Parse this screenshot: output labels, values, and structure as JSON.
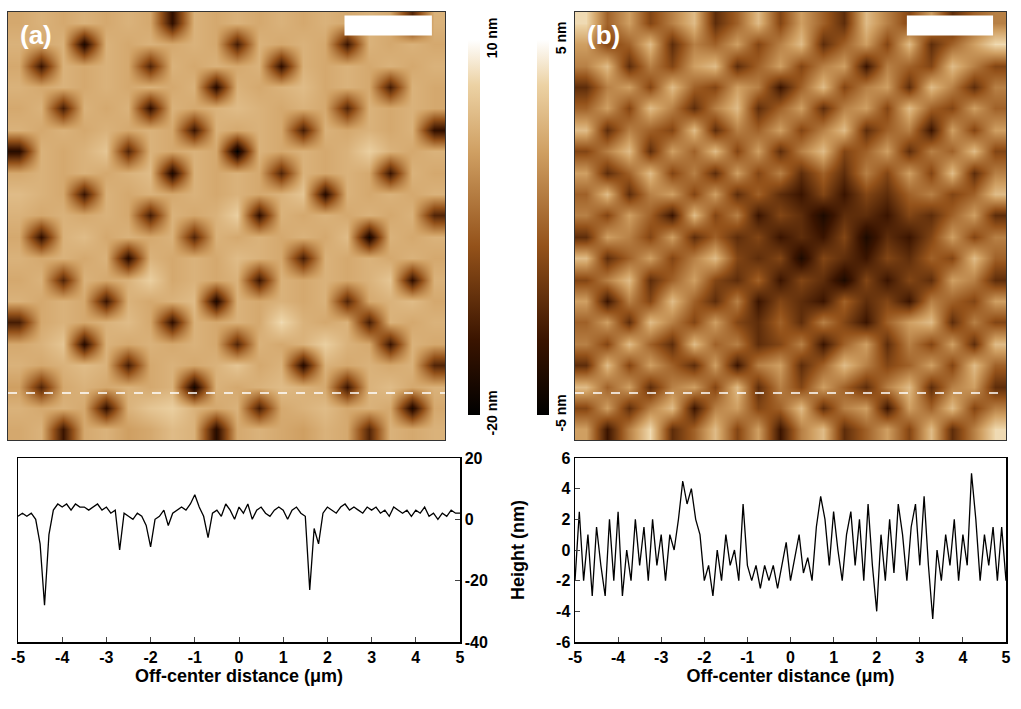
{
  "chart_data": [
    {
      "type": "heatmap",
      "panel": "(a)",
      "x": [
        -4.75,
        -4.25,
        -3.75,
        -3.25,
        -2.75,
        -2.25,
        -1.75,
        -1.25,
        -0.75,
        -0.25,
        0.25,
        0.75,
        1.25,
        1.75,
        2.25,
        2.75,
        3.25,
        3.75,
        4.25,
        4.75
      ],
      "y": [
        -4.75,
        -4.25,
        -3.75,
        -3.25,
        -2.75,
        -2.25,
        -1.75,
        -1.25,
        -0.75,
        -0.25,
        0.25,
        0.75,
        1.25,
        1.75,
        2.25,
        2.75,
        3.25,
        3.75,
        4.25,
        4.75
      ],
      "z": [
        [
          2,
          3,
          -14,
          2,
          3,
          1,
          2,
          4,
          3,
          -16,
          2,
          3,
          2,
          1,
          3,
          2,
          -12,
          3,
          2,
          3
        ],
        [
          3,
          2,
          3,
          2,
          -15,
          3,
          5,
          6,
          3,
          2,
          3,
          -13,
          2,
          3,
          4,
          2,
          3,
          2,
          -17,
          2
        ],
        [
          1,
          -12,
          2,
          3,
          2,
          3,
          2,
          3,
          -18,
          3,
          2,
          3,
          4,
          3,
          2,
          -14,
          3,
          4,
          2,
          3
        ],
        [
          3,
          2,
          3,
          4,
          3,
          -13,
          2,
          3,
          2,
          3,
          5,
          2,
          3,
          -16,
          3,
          2,
          3,
          2,
          3,
          -12
        ],
        [
          2,
          3,
          5,
          -16,
          3,
          2,
          3,
          2,
          3,
          2,
          -12,
          3,
          2,
          3,
          6,
          3,
          2,
          -14,
          3,
          2
        ],
        [
          -13,
          2,
          3,
          2,
          3,
          4,
          2,
          -15,
          3,
          2,
          3,
          2,
          7,
          3,
          2,
          3,
          -13,
          3,
          2,
          3
        ],
        [
          3,
          2,
          3,
          2,
          -14,
          3,
          2,
          3,
          4,
          -17,
          3,
          2,
          3,
          2,
          3,
          -12,
          2,
          3,
          4,
          2
        ],
        [
          2,
          3,
          -12,
          3,
          2,
          3,
          6,
          2,
          3,
          2,
          3,
          -14,
          3,
          2,
          3,
          2,
          3,
          5,
          -15,
          3
        ],
        [
          3,
          2,
          3,
          2,
          3,
          -16,
          3,
          2,
          3,
          2,
          4,
          3,
          2,
          -13,
          3,
          2,
          3,
          2,
          3,
          2
        ],
        [
          2,
          -15,
          3,
          4,
          2,
          3,
          2,
          3,
          -12,
          3,
          2,
          3,
          2,
          3,
          2,
          4,
          -18,
          3,
          2,
          3
        ],
        [
          3,
          2,
          3,
          2,
          3,
          2,
          -13,
          3,
          2,
          3,
          6,
          -15,
          3,
          2,
          3,
          2,
          3,
          2,
          3,
          -12
        ],
        [
          4,
          3,
          2,
          -14,
          3,
          2,
          3,
          2,
          3,
          2,
          3,
          2,
          3,
          5,
          -16,
          3,
          2,
          3,
          2,
          3
        ],
        [
          2,
          3,
          2,
          3,
          2,
          3,
          4,
          -17,
          3,
          2,
          3,
          2,
          -12,
          3,
          2,
          3,
          2,
          -14,
          3,
          2
        ],
        [
          -16,
          3,
          2,
          3,
          5,
          -12,
          3,
          2,
          3,
          2,
          -20,
          3,
          2,
          3,
          2,
          3,
          6,
          3,
          2,
          3
        ],
        [
          3,
          2,
          3,
          2,
          3,
          2,
          3,
          2,
          -14,
          3,
          2,
          3,
          2,
          -13,
          3,
          2,
          3,
          2,
          3,
          -15
        ],
        [
          2,
          3,
          -13,
          3,
          2,
          3,
          -15,
          3,
          2,
          3,
          4,
          3,
          2,
          3,
          2,
          -12,
          3,
          2,
          3,
          2
        ],
        [
          3,
          2,
          3,
          2,
          3,
          2,
          3,
          2,
          3,
          -16,
          3,
          2,
          3,
          4,
          2,
          3,
          2,
          -13,
          3,
          2
        ],
        [
          2,
          -14,
          3,
          2,
          3,
          2,
          -12,
          3,
          2,
          3,
          2,
          3,
          -15,
          3,
          2,
          3,
          2,
          3,
          2,
          3
        ],
        [
          3,
          2,
          3,
          -17,
          3,
          2,
          3,
          2,
          3,
          2,
          -13,
          3,
          2,
          3,
          2,
          -14,
          3,
          2,
          3,
          2
        ],
        [
          2,
          3,
          2,
          3,
          2,
          3,
          2,
          -15,
          3,
          2,
          3,
          2,
          3,
          2,
          3,
          2,
          3,
          2,
          -12,
          3
        ]
      ],
      "xlim": [
        -5,
        5
      ],
      "ylim": [
        -5,
        5
      ],
      "tick_labels": false,
      "colorbar": {
        "range": [
          -20,
          10
        ],
        "ticks": [
          {
            "value": 10,
            "label": "10 nm"
          },
          {
            "value": -20,
            "label": "-20 nm"
          }
        ]
      },
      "profile_y": -3.9,
      "scale_bar": 2
    },
    {
      "type": "line",
      "x_label": "Off-center distance (μm)",
      "color": "#000000",
      "x": [
        -5,
        -4.9,
        -4.8,
        -4.7,
        -4.6,
        -4.5,
        -4.4,
        -4.3,
        -4.2,
        -4.1,
        -4,
        -3.9,
        -3.8,
        -3.7,
        -3.6,
        -3.5,
        -3.4,
        -3.3,
        -3.2,
        -3.1,
        -3,
        -2.9,
        -2.8,
        -2.7,
        -2.6,
        -2.5,
        -2.4,
        -2.3,
        -2.2,
        -2.1,
        -2,
        -1.9,
        -1.8,
        -1.7,
        -1.6,
        -1.5,
        -1.4,
        -1.3,
        -1.2,
        -1.1,
        -1,
        -0.9,
        -0.8,
        -0.7,
        -0.6,
        -0.5,
        -0.4,
        -0.3,
        -0.2,
        -0.1,
        0,
        0.1,
        0.2,
        0.3,
        0.4,
        0.5,
        0.6,
        0.7,
        0.8,
        0.9,
        1,
        1.1,
        1.2,
        1.3,
        1.4,
        1.5,
        1.6,
        1.7,
        1.8,
        1.9,
        2,
        2.1,
        2.2,
        2.3,
        2.4,
        2.5,
        2.6,
        2.7,
        2.8,
        2.9,
        3,
        3.1,
        3.2,
        3.3,
        3.4,
        3.5,
        3.6,
        3.7,
        3.8,
        3.9,
        4,
        4.1,
        4.2,
        4.3,
        4.4,
        4.5,
        4.6,
        4.7,
        4.8,
        4.9,
        5
      ],
      "values": [
        1,
        2,
        1,
        2,
        0,
        -8,
        -28,
        -5,
        3,
        5,
        4,
        5,
        3,
        5,
        4,
        4,
        3,
        4,
        5,
        3,
        4,
        2,
        3,
        -10,
        2,
        1,
        0,
        2,
        1,
        -2,
        -9,
        0,
        1,
        3,
        -2,
        2,
        3,
        4,
        3,
        5,
        8,
        4,
        1,
        -6,
        2,
        3,
        1,
        5,
        3,
        0,
        4,
        2,
        5,
        0,
        3,
        4,
        2,
        1,
        3,
        4,
        3,
        0,
        3,
        4,
        2,
        1,
        -23,
        -3,
        -8,
        2,
        4,
        3,
        2,
        4,
        5,
        3,
        4,
        3,
        2,
        4,
        3,
        4,
        2,
        3,
        1,
        4,
        3,
        2,
        3,
        1,
        3,
        2,
        4,
        1,
        2,
        0,
        2,
        1,
        3,
        2,
        2
      ],
      "xlim": [
        -5,
        5
      ],
      "xticks": [
        -5,
        -4,
        -3,
        -2,
        -1,
        0,
        1,
        2,
        3,
        4,
        5
      ],
      "ylim": [
        -40,
        20
      ],
      "yticks": [
        -40,
        -20,
        0,
        20
      ]
    },
    {
      "type": "heatmap",
      "panel": "(b)",
      "x": [
        -4.75,
        -4.25,
        -3.75,
        -3.25,
        -2.75,
        -2.25,
        -1.75,
        -1.25,
        -0.75,
        -0.25,
        0.25,
        0.75,
        1.25,
        1.75,
        2.25,
        2.75,
        3.25,
        3.75,
        4.25,
        4.75
      ],
      "y": [
        -4.75,
        -4.25,
        -3.75,
        -3.25,
        -2.75,
        -2.25,
        -1.75,
        -1.25,
        -0.75,
        -0.25,
        0.25,
        0.75,
        1.25,
        1.75,
        2.25,
        2.75,
        3.25,
        3.75,
        4.25,
        4.75
      ],
      "z": [
        [
          2,
          -3,
          1,
          4,
          -2,
          0,
          3,
          -1,
          2,
          -3,
          1,
          3,
          -2,
          0,
          2,
          -1,
          3,
          -2,
          1,
          4
        ],
        [
          -1,
          2,
          -2,
          1,
          3,
          -3,
          1,
          2,
          -1,
          0,
          3,
          -2,
          1,
          2,
          -3,
          2,
          0,
          3,
          -1,
          1
        ],
        [
          3,
          0,
          2,
          -2,
          1,
          2,
          -1,
          3,
          -2,
          1,
          -1,
          2,
          0,
          -2,
          1,
          3,
          -2,
          1,
          2,
          -2
        ],
        [
          -2,
          3,
          -1,
          2,
          0,
          -2,
          2,
          -3,
          1,
          2,
          -2,
          0,
          3,
          1,
          -1,
          0,
          2,
          -1,
          3,
          0
        ],
        [
          1,
          -1,
          3,
          0,
          -2,
          3,
          0,
          1,
          -2,
          -1,
          1,
          -3,
          0,
          2,
          -2,
          1,
          -1,
          2,
          -2,
          3
        ],
        [
          0,
          2,
          -2,
          3,
          1,
          -1,
          2,
          -1,
          -2,
          0,
          -2,
          1,
          -1,
          -3,
          0,
          2,
          3,
          -2,
          1,
          -1
        ],
        [
          2,
          -3,
          1,
          -1,
          3,
          0,
          -2,
          1,
          -3,
          -1,
          -2,
          -3,
          0,
          -2,
          -1,
          -3,
          1,
          0,
          -1,
          2
        ],
        [
          -1,
          1,
          3,
          -2,
          0,
          2,
          -1,
          -2,
          0,
          -3,
          -1,
          -2,
          -4,
          -1,
          -3,
          -1,
          -2,
          2,
          1,
          -2
        ],
        [
          3,
          -2,
          0,
          2,
          -1,
          1,
          3,
          -1,
          -2,
          -1,
          -4,
          -1,
          -2,
          -3,
          -1,
          -2,
          0,
          -1,
          3,
          0
        ],
        [
          -2,
          2,
          1,
          -1,
          2,
          -2,
          0,
          -2,
          -1,
          -3,
          -2,
          -3,
          -1,
          -4,
          -2,
          -3,
          -1,
          2,
          -1,
          1
        ],
        [
          1,
          -1,
          2,
          0,
          -3,
          3,
          -1,
          1,
          -3,
          -1,
          -2,
          -4,
          -2,
          -2,
          -3,
          -1,
          -2,
          0,
          2,
          -2
        ],
        [
          0,
          3,
          -2,
          1,
          2,
          -1,
          2,
          -2,
          0,
          -2,
          -3,
          -1,
          -3,
          -1,
          -2,
          0,
          1,
          -1,
          0,
          3
        ],
        [
          2,
          -2,
          0,
          3,
          -1,
          1,
          -2,
          2,
          -1,
          1,
          -2,
          0,
          -2,
          1,
          -1,
          2,
          -1,
          3,
          -2,
          1
        ],
        [
          -1,
          1,
          3,
          -2,
          2,
          0,
          3,
          -1,
          2,
          -2,
          1,
          3,
          -1,
          0,
          2,
          -2,
          1,
          0,
          3,
          -1
        ],
        [
          3,
          -2,
          1,
          0,
          -1,
          3,
          -2,
          1,
          0,
          2,
          -1,
          1,
          3,
          -2,
          0,
          1,
          -3,
          2,
          -1,
          2
        ],
        [
          0,
          2,
          -1,
          3,
          1,
          -2,
          1,
          3,
          -2,
          0,
          2,
          -2,
          1,
          2,
          -1,
          3,
          0,
          -1,
          2,
          0
        ],
        [
          -2,
          1,
          2,
          -1,
          3,
          0,
          -1,
          2,
          1,
          -3,
          0,
          3,
          -1,
          1,
          2,
          -2,
          3,
          1,
          -2,
          1
        ],
        [
          1,
          3,
          -2,
          1,
          -1,
          2,
          3,
          -2,
          0,
          2,
          -1,
          1,
          2,
          -3,
          1,
          0,
          -1,
          3,
          1,
          -1
        ],
        [
          2,
          -1,
          0,
          3,
          -2,
          1,
          0,
          2,
          -1,
          1,
          3,
          -2,
          0,
          2,
          -1,
          3,
          -2,
          0,
          2,
          4
        ],
        [
          4,
          0,
          2,
          -1,
          1,
          3,
          -2,
          0,
          3,
          -1,
          2,
          0,
          -2,
          3,
          1,
          -1,
          2,
          -2,
          0,
          1
        ]
      ],
      "xlim": [
        -5,
        5
      ],
      "ylim": [
        -5,
        5
      ],
      "tick_labels": false,
      "colorbar": {
        "range": [
          -5,
          5
        ],
        "ticks": [
          {
            "value": 5,
            "label": "5 nm"
          },
          {
            "value": -5,
            "label": "-5 nm"
          }
        ]
      },
      "profile_y": -3.9,
      "scale_bar": 2
    },
    {
      "type": "line",
      "x_label": "Off-center distance (μm)",
      "y_label": "Height (nm)",
      "color": "#000000",
      "x": [
        -5,
        -4.9,
        -4.8,
        -4.7,
        -4.6,
        -4.5,
        -4.4,
        -4.3,
        -4.2,
        -4.1,
        -4,
        -3.9,
        -3.8,
        -3.7,
        -3.6,
        -3.5,
        -3.4,
        -3.3,
        -3.2,
        -3.1,
        -3,
        -2.9,
        -2.8,
        -2.7,
        -2.6,
        -2.5,
        -2.4,
        -2.3,
        -2.2,
        -2.1,
        -2,
        -1.9,
        -1.8,
        -1.7,
        -1.6,
        -1.5,
        -1.4,
        -1.3,
        -1.2,
        -1.1,
        -1,
        -0.9,
        -0.8,
        -0.7,
        -0.6,
        -0.5,
        -0.4,
        -0.3,
        -0.2,
        -0.1,
        0,
        0.1,
        0.2,
        0.3,
        0.4,
        0.5,
        0.6,
        0.7,
        0.8,
        0.9,
        1,
        1.1,
        1.2,
        1.3,
        1.4,
        1.5,
        1.6,
        1.7,
        1.8,
        1.9,
        2,
        2.1,
        2.2,
        2.3,
        2.4,
        2.5,
        2.6,
        2.7,
        2.8,
        2.9,
        3,
        3.1,
        3.2,
        3.3,
        3.4,
        3.5,
        3.6,
        3.7,
        3.8,
        3.9,
        4,
        4.1,
        4.2,
        4.3,
        4.4,
        4.5,
        4.6,
        4.7,
        4.8,
        4.9,
        5
      ],
      "values": [
        -2,
        2.5,
        -2,
        1,
        -3,
        1.5,
        -1,
        -3,
        2,
        -2,
        2.5,
        -3,
        0,
        -2,
        2,
        -1,
        1.5,
        -2,
        2,
        -1,
        1,
        -2,
        1,
        0,
        2,
        4.5,
        3,
        4,
        2,
        1,
        -2,
        -1,
        -3,
        0,
        -2,
        1,
        -1,
        0,
        -2,
        3,
        -1,
        -2,
        -1,
        -2.5,
        -1,
        -2,
        -1,
        -2.5,
        -1,
        0.5,
        -2,
        -0.5,
        1,
        -1.5,
        -0.5,
        -2,
        1.5,
        3.5,
        2,
        -1,
        2.5,
        0,
        -2,
        1,
        2.5,
        -1,
        2,
        -2,
        3,
        -1,
        -4,
        1,
        -2,
        2,
        -1.5,
        3,
        1,
        -2,
        1.5,
        3,
        -1,
        3.5,
        -1,
        -4.5,
        0,
        -2,
        1,
        -1,
        2,
        -2,
        1,
        -1,
        5,
        2,
        -2,
        1,
        -1,
        1.5,
        -2,
        1.5,
        -2
      ],
      "xlim": [
        -5,
        5
      ],
      "xticks": [
        -5,
        -4,
        -3,
        -2,
        -1,
        0,
        1,
        2,
        3,
        4,
        5
      ],
      "ylim": [
        -6,
        6
      ],
      "yticks": [
        -6,
        -4,
        -2,
        0,
        2,
        4,
        6
      ]
    }
  ]
}
